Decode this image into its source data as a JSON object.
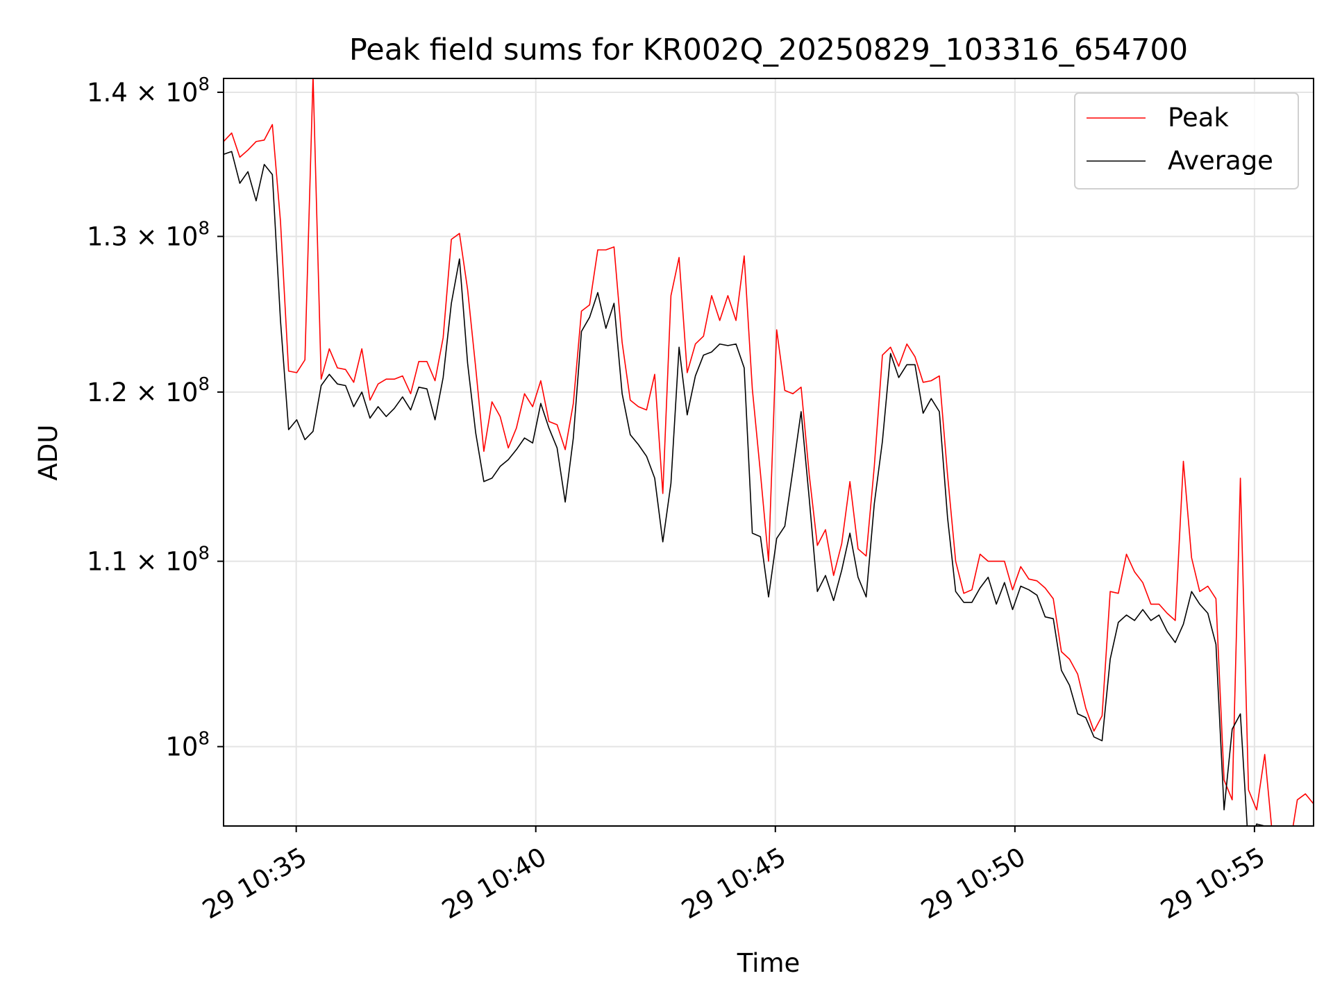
{
  "chart_data": {
    "type": "line",
    "title": "Peak field sums for KR002Q_20250829_103316_654700",
    "xlabel": "Time",
    "ylabel": "ADU",
    "yscale": "log",
    "grid": true,
    "legend_position": "top-right",
    "x_start": "10:33:29",
    "x_range": [
      "10:33:29",
      "10:56:14"
    ],
    "ylim": [
      96000000,
      141000000
    ],
    "x_ticks": [
      {
        "time": "10:35:00",
        "label": "29 10:35"
      },
      {
        "time": "10:40:00",
        "label": "29 10:40"
      },
      {
        "time": "10:45:00",
        "label": "29 10:45"
      },
      {
        "time": "10:50:00",
        "label": "29 10:50"
      },
      {
        "time": "10:55:00",
        "label": "29 10:55"
      }
    ],
    "y_ticks": [
      {
        "value": 100000000,
        "mantissa": "",
        "exponent": "8"
      },
      {
        "value": 110000000,
        "mantissa": "1.1",
        "exponent": "8"
      },
      {
        "value": 120000000,
        "mantissa": "1.2",
        "exponent": "8"
      },
      {
        "value": 130000000,
        "mantissa": "1.3",
        "exponent": "8"
      },
      {
        "value": 140000000,
        "mantissa": "1.4",
        "exponent": "8"
      }
    ],
    "series": [
      {
        "name": "Peak",
        "color": "#ff0000",
        "values": [
          136.5,
          137.1,
          135.4,
          135.9,
          136.5,
          136.6,
          137.7,
          131.0,
          121.3,
          121.2,
          122.0,
          141.2,
          120.8,
          122.7,
          121.5,
          121.4,
          120.6,
          122.7,
          119.5,
          120.5,
          120.8,
          120.8,
          121.0,
          119.9,
          121.9,
          121.9,
          120.7,
          123.4,
          129.8,
          130.2,
          126.5,
          121.5,
          116.4,
          119.4,
          118.5,
          116.6,
          117.8,
          119.9,
          119.1,
          120.7,
          118.2,
          118.0,
          116.5,
          119.3,
          125.1,
          125.5,
          129.1,
          129.1,
          129.3,
          123.1,
          119.5,
          119.1,
          118.9,
          121.1,
          113.9,
          126.1,
          128.6,
          121.2,
          123.0,
          123.5,
          126.1,
          124.5,
          126.1,
          124.5,
          128.7,
          120.2,
          115.1,
          110.0,
          123.9,
          120.1,
          119.9,
          120.3,
          115.0,
          110.9,
          111.8,
          109.2,
          111.0,
          114.6,
          110.7,
          110.3,
          115.5,
          122.3,
          122.8,
          121.6,
          123.0,
          122.2,
          120.6,
          120.7,
          121.0,
          115.0,
          110.0,
          108.2,
          108.4,
          110.4,
          110.0,
          110.0,
          110.0,
          108.4,
          109.7,
          109.0,
          108.9,
          108.5,
          107.9,
          105.0,
          104.6,
          103.8,
          102.0,
          100.8,
          101.6,
          108.3,
          108.2,
          110.4,
          109.4,
          108.8,
          107.6,
          107.6,
          107.1,
          106.7,
          115.8,
          110.2,
          108.3,
          108.6,
          107.9,
          98.3,
          97.3,
          114.8,
          97.8,
          96.8,
          99.6,
          95.3,
          94.6,
          94.8,
          97.3,
          97.6,
          97.1
        ]
      },
      {
        "name": "Average",
        "color": "#000000",
        "values": [
          135.6,
          135.8,
          133.6,
          134.4,
          132.4,
          134.9,
          134.2,
          124.5,
          117.7,
          118.3,
          117.1,
          117.6,
          120.4,
          121.1,
          120.5,
          120.4,
          119.1,
          120.0,
          118.4,
          119.1,
          118.5,
          119.0,
          119.7,
          118.9,
          120.3,
          120.2,
          118.3,
          120.9,
          125.6,
          128.5,
          121.8,
          117.5,
          114.6,
          114.8,
          115.5,
          115.9,
          116.5,
          117.2,
          116.9,
          119.3,
          117.8,
          116.6,
          113.4,
          117.2,
          123.8,
          124.7,
          126.3,
          124.0,
          125.6,
          119.9,
          117.4,
          116.8,
          116.1,
          114.8,
          111.1,
          114.5,
          122.8,
          118.6,
          121.0,
          122.3,
          122.5,
          123.0,
          122.9,
          123.0,
          121.5,
          111.6,
          111.4,
          108.0,
          111.3,
          112.0,
          115.3,
          118.8,
          113.6,
          108.3,
          109.2,
          107.8,
          109.5,
          111.6,
          109.1,
          108.0,
          113.3,
          117.0,
          122.4,
          120.9,
          121.7,
          121.7,
          118.7,
          119.6,
          118.8,
          112.5,
          108.3,
          107.7,
          107.7,
          108.5,
          109.1,
          107.6,
          108.8,
          107.3,
          108.6,
          108.4,
          108.1,
          106.9,
          106.8,
          104.0,
          103.2,
          101.7,
          101.5,
          100.5,
          100.3,
          104.6,
          106.6,
          107.0,
          106.7,
          107.3,
          106.7,
          107.0,
          106.1,
          105.5,
          106.5,
          108.3,
          107.6,
          107.1,
          105.4,
          96.8,
          100.9,
          101.7,
          94.9,
          96.1,
          96.0,
          94.9,
          94.2,
          94.4,
          95.5,
          96.0,
          95.8
        ]
      }
    ]
  }
}
